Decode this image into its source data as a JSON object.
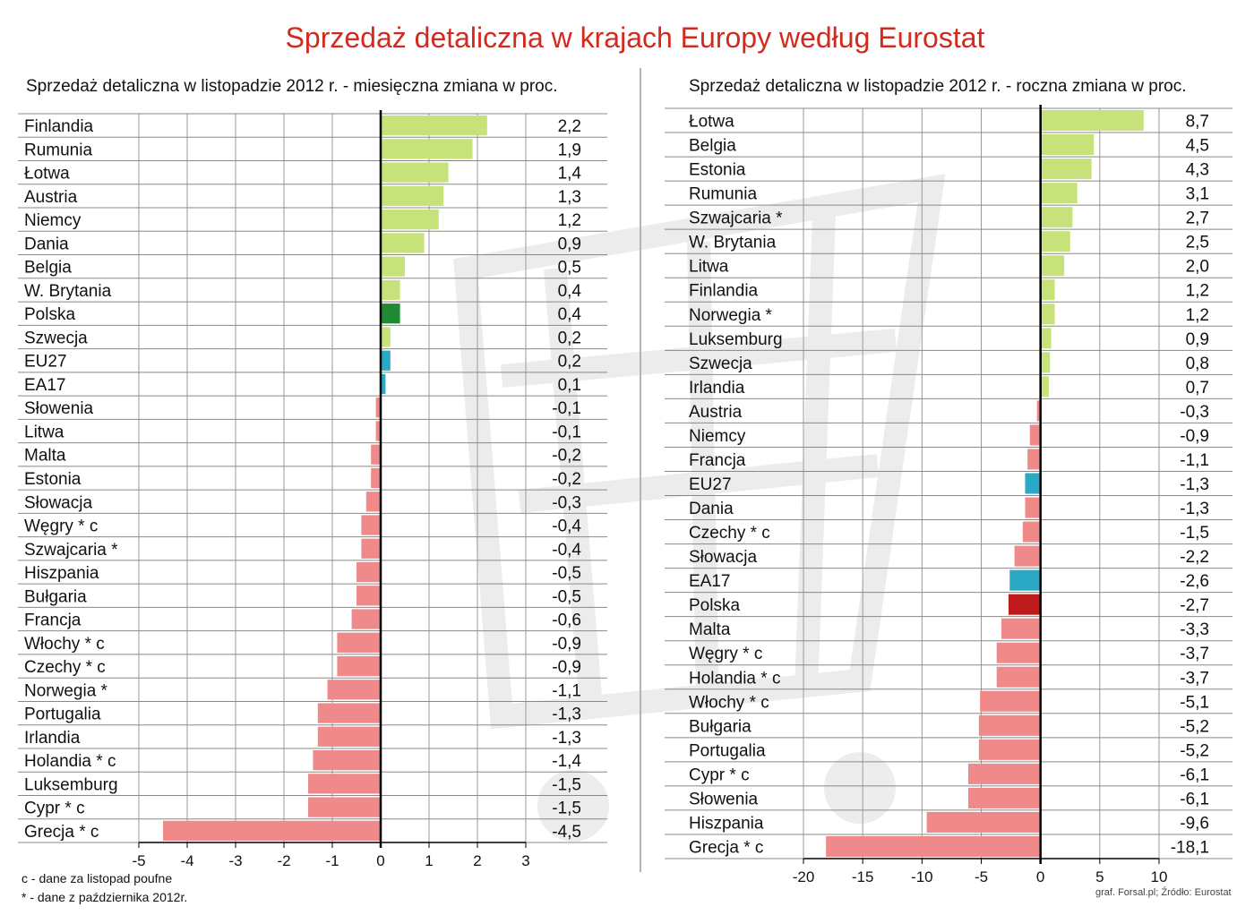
{
  "title": "Sprzedaż detaliczna w krajach Europy według Eurostat",
  "footnotes": {
    "c": "c - dane za listopad poufne",
    "star": "* - dane z października 2012r."
  },
  "source": "graf. Forsal.pl; Źródło: Eurostat",
  "colors": {
    "positive": "#c7e27a",
    "negative": "#f08a8a",
    "highlight_pos": "#1f8a32",
    "highlight_neg": "#bf1a1a",
    "aggregate": "#2aa8c4",
    "highlight_label": "#e03a1e"
  },
  "chart_data": [
    {
      "type": "bar",
      "orientation": "horizontal",
      "title": "Sprzedaż detaliczna w listopadzie 2012 r. - miesięczna zmiana w proc.",
      "xlim": [
        -5,
        3
      ],
      "xticks": [
        -5,
        -4,
        -3,
        -2,
        -1,
        0,
        1,
        2,
        3
      ],
      "categories": [
        "Finlandia",
        "Rumunia",
        "Łotwa",
        "Austria",
        "Niemcy",
        "Dania",
        "Belgia",
        "W. Brytania",
        "Polska",
        "Szwecja",
        "EU27",
        "EA17",
        "Słowenia",
        "Litwa",
        "Malta",
        "Estonia",
        "Słowacja",
        "Węgry * c",
        "Szwajcaria *",
        "Hiszpania",
        "Bułgaria",
        "Francja",
        "Włochy * c",
        "Czechy * c",
        "Norwegia *",
        "Portugalia",
        "Irlandia",
        "Holandia * c",
        "Luksemburg",
        "Cypr * c",
        "Grecja * c"
      ],
      "values": [
        2.2,
        1.9,
        1.4,
        1.3,
        1.2,
        0.9,
        0.5,
        0.4,
        0.4,
        0.2,
        0.2,
        0.1,
        -0.1,
        -0.1,
        -0.2,
        -0.2,
        -0.3,
        -0.4,
        -0.4,
        -0.5,
        -0.5,
        -0.6,
        -0.9,
        -0.9,
        -1.1,
        -1.3,
        -1.3,
        -1.4,
        -1.5,
        -1.5,
        -4.5
      ],
      "value_labels": [
        "2,2",
        "1,9",
        "1,4",
        "1,3",
        "1,2",
        "0,9",
        "0,5",
        "0,4",
        "0,4",
        "0,2",
        "0,2",
        "0,1",
        "-0,1",
        "-0,1",
        "-0,2",
        "-0,2",
        "-0,3",
        "-0,4",
        "-0,4",
        "-0,5",
        "-0,5",
        "-0,6",
        "-0,9",
        "-0,9",
        "-1,1",
        "-1,3",
        "-1,3",
        "-1,4",
        "-1,5",
        "-1,5",
        "-4,5"
      ],
      "highlight": "Polska",
      "aggregates": [
        "EU27",
        "EA17"
      ]
    },
    {
      "type": "bar",
      "orientation": "horizontal",
      "title": "Sprzedaż detaliczna w listopadzie 2012 r. - roczna zmiana w proc.",
      "xlim": [
        -20,
        10
      ],
      "xticks": [
        -20,
        -15,
        -10,
        -5,
        0,
        5,
        10
      ],
      "categories": [
        "Łotwa",
        "Belgia",
        "Estonia",
        "Rumunia",
        "Szwajcaria *",
        "W. Brytania",
        "Litwa",
        "Finlandia",
        "Norwegia *",
        "Luksemburg",
        "Szwecja",
        "Irlandia",
        "Austria",
        "Niemcy",
        "Francja",
        "EU27",
        "Dania",
        "Czechy * c",
        "Słowacja",
        "EA17",
        "Polska",
        "Malta",
        "Węgry * c",
        "Holandia * c",
        "Włochy * c",
        "Bułgaria",
        "Portugalia",
        "Cypr * c",
        "Słowenia",
        "Hiszpania",
        "Grecja * c"
      ],
      "values": [
        8.7,
        4.5,
        4.3,
        3.1,
        2.7,
        2.5,
        2.0,
        1.2,
        1.2,
        0.9,
        0.8,
        0.7,
        -0.3,
        -0.9,
        -1.1,
        -1.3,
        -1.3,
        -1.5,
        -2.2,
        -2.6,
        -2.7,
        -3.3,
        -3.7,
        -3.7,
        -5.1,
        -5.2,
        -5.2,
        -6.1,
        -6.1,
        -9.6,
        -18.1
      ],
      "value_labels": [
        "8,7",
        "4,5",
        "4,3",
        "3,1",
        "2,7",
        "2,5",
        "2,0",
        "1,2",
        "1,2",
        "0,9",
        "0,8",
        "0,7",
        "-0,3",
        "-0,9",
        "-1,1",
        "-1,3",
        "-1,3",
        "-1,5",
        "-2,2",
        "-2,6",
        "-2,7",
        "-3,3",
        "-3,7",
        "-3,7",
        "-5,1",
        "-5,2",
        "-5,2",
        "-6,1",
        "-6,1",
        "-9,6",
        "-18,1"
      ],
      "highlight": "Polska",
      "aggregates": [
        "EU27",
        "EA17"
      ]
    }
  ]
}
